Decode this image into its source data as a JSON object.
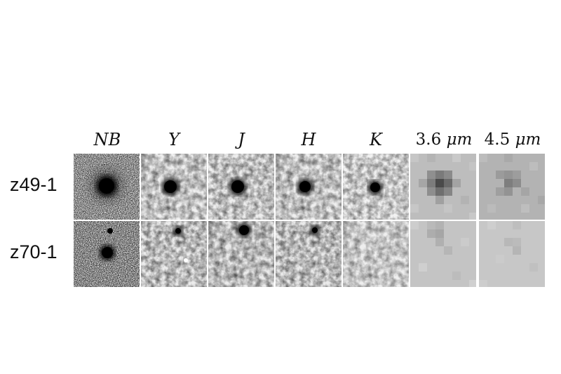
{
  "columns": [
    {
      "key": "nb",
      "label": "NB"
    },
    {
      "key": "y",
      "label": "Y"
    },
    {
      "key": "j",
      "label": "J"
    },
    {
      "key": "h",
      "label": "H"
    },
    {
      "key": "k",
      "label": "K"
    },
    {
      "key": "ch1",
      "label_num": "3.6",
      "label_unit": "μm"
    },
    {
      "key": "ch2",
      "label_num": "4.5",
      "label_unit": "μm"
    }
  ],
  "rows": [
    {
      "key": "z49",
      "label": "z49-1"
    },
    {
      "key": "z70",
      "label": "z70-1"
    }
  ]
}
